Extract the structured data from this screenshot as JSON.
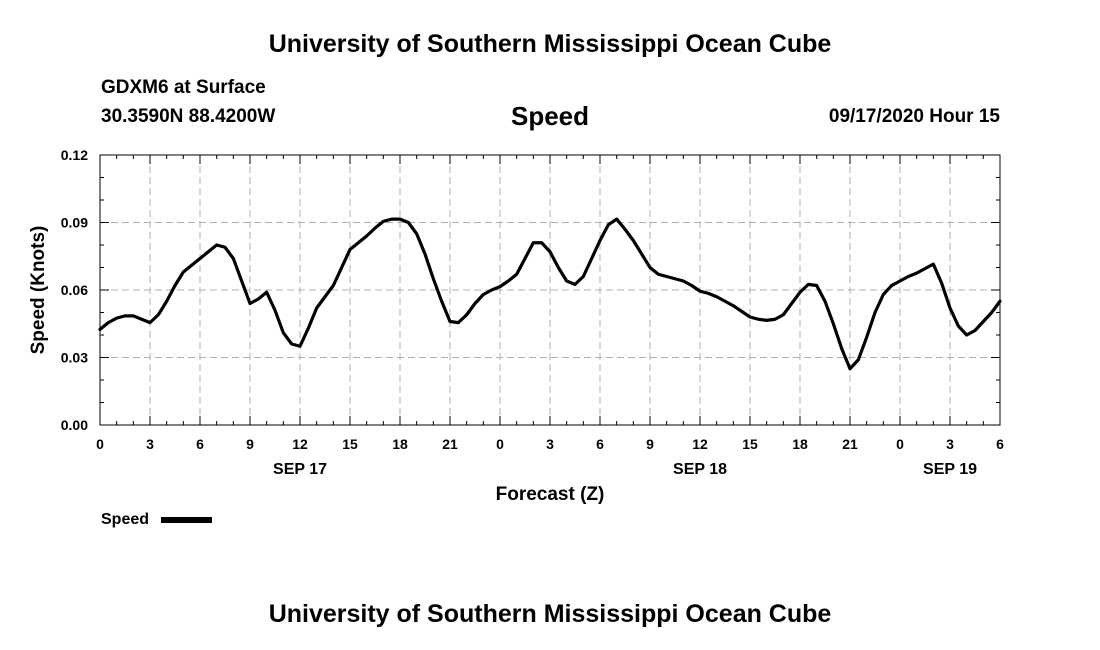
{
  "top_title": "University of Southern Mississippi Ocean Cube",
  "bottom_title": "University of Southern Mississippi Ocean Cube",
  "station": {
    "name": "GDXM6 at Surface",
    "coords": "30.3590N 88.4200W"
  },
  "forecast_time": "09/17/2020 Hour 15",
  "chart_data": {
    "type": "line",
    "title": "Speed",
    "xlabel": "Forecast (Z)",
    "ylabel": "Speed (Knots)",
    "ylim": [
      0,
      0.12
    ],
    "yticks": [
      "0.00",
      "0.03",
      "0.06",
      "0.09",
      "0.12"
    ],
    "xlim_hours": [
      0,
      54
    ],
    "xticks": [
      "0",
      "3",
      "6",
      "9",
      "12",
      "15",
      "18",
      "21",
      "0",
      "3",
      "6",
      "9",
      "12",
      "15",
      "18",
      "21",
      "0",
      "3",
      "6"
    ],
    "date_labels": [
      {
        "label": "SEP 17",
        "hour": 12
      },
      {
        "label": "SEP 18",
        "hour": 36
      },
      {
        "label": "SEP 19",
        "hour": 51
      }
    ],
    "grid": true,
    "legend": {
      "label": "Speed",
      "placement": "bottom-left"
    },
    "series": [
      {
        "name": "Speed",
        "color": "#000000",
        "hours": [
          0,
          0.5,
          1,
          1.5,
          2,
          2.5,
          3,
          3.5,
          4,
          4.5,
          5,
          5.5,
          6,
          6.5,
          7,
          7.5,
          8,
          8.5,
          9,
          9.5,
          10,
          10.5,
          11,
          11.5,
          12,
          12.5,
          13,
          13.5,
          14,
          14.5,
          15,
          15.5,
          16,
          16.5,
          17,
          17.5,
          18,
          18.5,
          19,
          19.5,
          20,
          20.5,
          21,
          21.5,
          22,
          22.5,
          23,
          23.5,
          24,
          24.5,
          25,
          25.5,
          26,
          26.5,
          27,
          27.5,
          28,
          28.5,
          29,
          29.5,
          30,
          30.5,
          31,
          31.5,
          32,
          32.5,
          33,
          33.5,
          34,
          34.5,
          35,
          35.5,
          36,
          36.5,
          37,
          37.5,
          38,
          38.5,
          39,
          39.5,
          40,
          40.5,
          41,
          41.5,
          42,
          42.5,
          43,
          43.5,
          44,
          44.5,
          45,
          45.5,
          46,
          46.5,
          47,
          47.5,
          48,
          48.5,
          49,
          49.5,
          50,
          50.5,
          51,
          51.5,
          52,
          52.5,
          53,
          53.5,
          54
        ],
        "values": [
          0.0425,
          0.0455,
          0.0475,
          0.0485,
          0.0485,
          0.047,
          0.0455,
          0.049,
          0.055,
          0.062,
          0.068,
          0.071,
          0.074,
          0.077,
          0.08,
          0.079,
          0.074,
          0.064,
          0.054,
          0.056,
          0.059,
          0.051,
          0.041,
          0.036,
          0.035,
          0.043,
          0.052,
          0.057,
          0.062,
          0.07,
          0.078,
          0.081,
          0.084,
          0.0875,
          0.0905,
          0.0915,
          0.0915,
          0.09,
          0.085,
          0.076,
          0.065,
          0.055,
          0.046,
          0.0455,
          0.049,
          0.054,
          0.058,
          0.06,
          0.0615,
          0.064,
          0.067,
          0.074,
          0.081,
          0.081,
          0.077,
          0.07,
          0.064,
          0.0625,
          0.066,
          0.074,
          0.082,
          0.089,
          0.0915,
          0.087,
          0.082,
          0.076,
          0.07,
          0.067,
          0.066,
          0.065,
          0.064,
          0.062,
          0.0595,
          0.0585,
          0.057,
          0.055,
          0.053,
          0.0505,
          0.048,
          0.047,
          0.0465,
          0.047,
          0.049,
          0.054,
          0.059,
          0.0625,
          0.062,
          0.055,
          0.045,
          0.034,
          0.025,
          0.029,
          0.039,
          0.05,
          0.058,
          0.062,
          0.064,
          0.066,
          0.0675,
          0.0695,
          0.0715,
          0.063,
          0.052,
          0.044,
          0.04,
          0.042,
          0.046,
          0.05,
          0.055
        ]
      }
    ]
  }
}
